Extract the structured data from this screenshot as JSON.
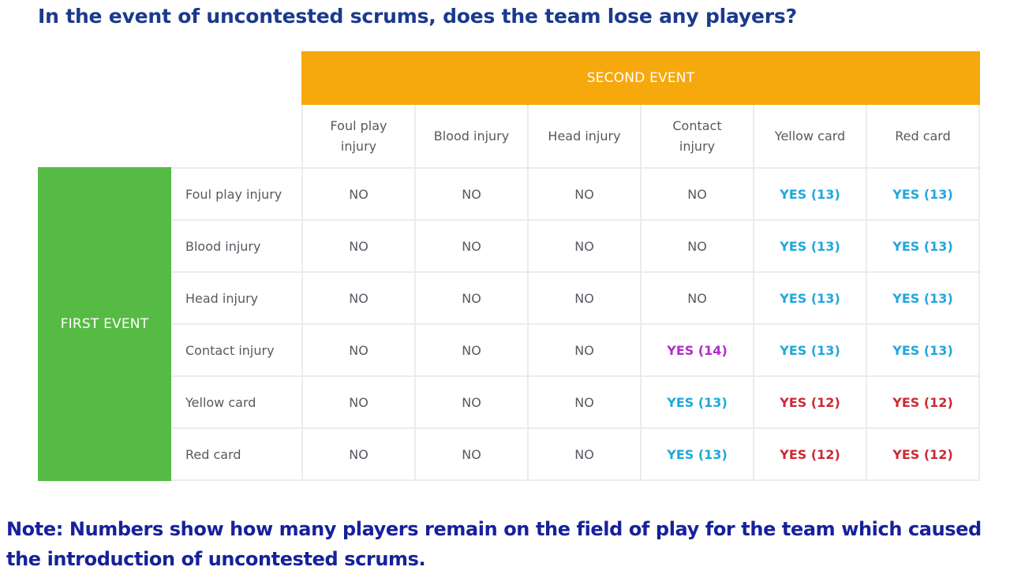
{
  "title": "In the event of uncontested scrums, does the team lose any players?",
  "table": {
    "second_event_label": "SECOND EVENT",
    "first_event_label": "FIRST EVENT",
    "columns": [
      {
        "line1": "Foul play",
        "line2": "injury"
      },
      {
        "line1": "Blood injury",
        "line2": ""
      },
      {
        "line1": "Head injury",
        "line2": ""
      },
      {
        "line1": "Contact",
        "line2": "injury"
      },
      {
        "line1": "Yellow card",
        "line2": ""
      },
      {
        "line1": "Red card",
        "line2": ""
      }
    ],
    "rows": [
      {
        "label": "Foul play injury",
        "cells": [
          "NO",
          "NO",
          "NO",
          "NO",
          "YES (13)",
          "YES (13)"
        ]
      },
      {
        "label": "Blood injury",
        "cells": [
          "NO",
          "NO",
          "NO",
          "NO",
          "YES (13)",
          "YES (13)"
        ]
      },
      {
        "label": "Head injury",
        "cells": [
          "NO",
          "NO",
          "NO",
          "NO",
          "YES (13)",
          "YES (13)"
        ]
      },
      {
        "label": "Contact injury",
        "cells": [
          "NO",
          "NO",
          "NO",
          "YES (14)",
          "YES (13)",
          "YES (13)"
        ]
      },
      {
        "label": "Yellow card",
        "cells": [
          "NO",
          "NO",
          "NO",
          "YES (13)",
          "YES (12)",
          "YES (12)"
        ]
      },
      {
        "label": "Red card",
        "cells": [
          "NO",
          "NO",
          "NO",
          "YES (13)",
          "YES (12)",
          "YES (12)"
        ]
      }
    ]
  },
  "colors": {
    "title": "#1a3a8c",
    "second_event_bg": "#f6a90c",
    "first_event_bg": "#56bb45",
    "yes_13": "#1fa7dc",
    "yes_14": "#b02ec7",
    "yes_12": "#cc2a32",
    "no": "#555a60",
    "note": "#16219a"
  },
  "note": "Note: Numbers show how many players remain on the field of play for the team which caused the introduction of uncontested scrums."
}
